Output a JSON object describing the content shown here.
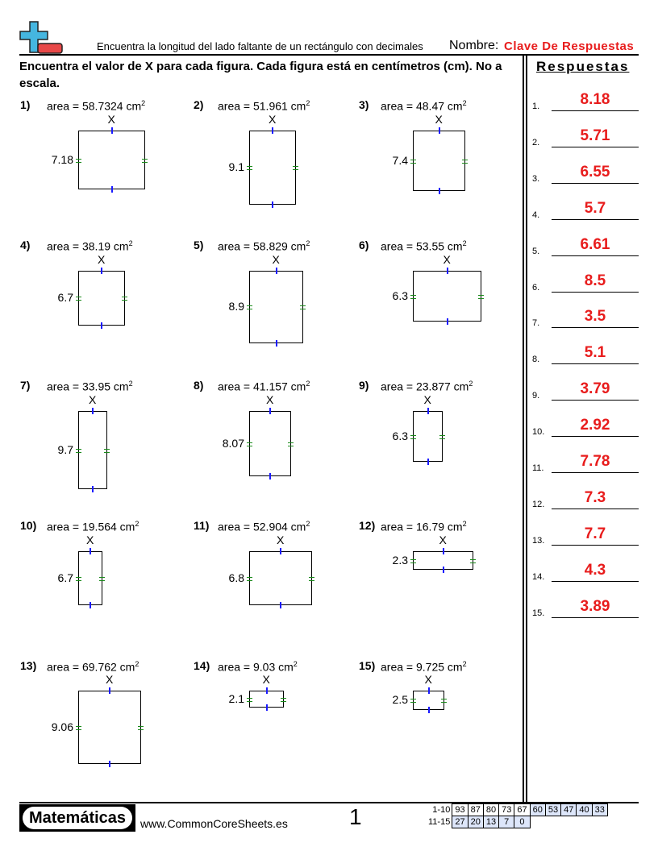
{
  "header": {
    "subtitle": "Encuentra la longitud del lado faltante de un rectángulo con decimales",
    "name_label": "Nombre:",
    "name_value": "Clave De Respuestas"
  },
  "instructions": "Encuentra el valor de X para cada figura. Cada figura está en centímetros (cm). No a escala.",
  "answers_title": "Respuestas",
  "problems": [
    {
      "num": "1)",
      "area": "area = 58.7324 cm",
      "side": "7.18",
      "x": "X"
    },
    {
      "num": "2)",
      "area": "area = 51.961 cm",
      "side": "9.1",
      "x": "X"
    },
    {
      "num": "3)",
      "area": "area = 48.47 cm",
      "side": "7.4",
      "x": "X"
    },
    {
      "num": "4)",
      "area": "area = 38.19 cm",
      "side": "6.7",
      "x": "X"
    },
    {
      "num": "5)",
      "area": "area = 58.829 cm",
      "side": "8.9",
      "x": "X"
    },
    {
      "num": "6)",
      "area": "area = 53.55 cm",
      "side": "6.3",
      "x": "X"
    },
    {
      "num": "7)",
      "area": "area = 33.95 cm",
      "side": "9.7",
      "x": "X"
    },
    {
      "num": "8)",
      "area": "area = 41.157 cm",
      "side": "8.07",
      "x": "X"
    },
    {
      "num": "9)",
      "area": "area = 23.877 cm",
      "side": "6.3",
      "x": "X"
    },
    {
      "num": "10)",
      "area": "area = 19.564 cm",
      "side": "6.7",
      "x": "X"
    },
    {
      "num": "11)",
      "area": "area = 52.904 cm",
      "side": "6.8",
      "x": "X"
    },
    {
      "num": "12)",
      "area": "area = 16.79 cm",
      "side": "2.3",
      "x": "X"
    },
    {
      "num": "13)",
      "area": "area = 69.762 cm",
      "side": "9.06",
      "x": "X"
    },
    {
      "num": "14)",
      "area": "area = 9.03 cm",
      "side": "2.1",
      "x": "X"
    },
    {
      "num": "15)",
      "area": "area = 9.725 cm",
      "side": "2.5",
      "x": "X"
    }
  ],
  "area_exponent": "2",
  "answers": [
    {
      "num": "1.",
      "val": "8.18"
    },
    {
      "num": "2.",
      "val": "5.71"
    },
    {
      "num": "3.",
      "val": "6.55"
    },
    {
      "num": "4.",
      "val": "5.7"
    },
    {
      "num": "5.",
      "val": "6.61"
    },
    {
      "num": "6.",
      "val": "8.5"
    },
    {
      "num": "7.",
      "val": "3.5"
    },
    {
      "num": "8.",
      "val": "5.1"
    },
    {
      "num": "9.",
      "val": "3.79"
    },
    {
      "num": "10.",
      "val": "2.92"
    },
    {
      "num": "11.",
      "val": "7.78"
    },
    {
      "num": "12.",
      "val": "7.3"
    },
    {
      "num": "13.",
      "val": "7.7"
    },
    {
      "num": "14.",
      "val": "4.3"
    },
    {
      "num": "15.",
      "val": "3.89"
    }
  ],
  "footer": {
    "brand": "Matemáticas",
    "url": "www.CommonCoreSheets.es",
    "page": "1",
    "score_rows": [
      {
        "label": "1-10",
        "scores": [
          "93",
          "87",
          "80",
          "73",
          "67",
          "60",
          "53",
          "47",
          "40",
          "33"
        ]
      },
      {
        "label": "11-15",
        "scores": [
          "27",
          "20",
          "13",
          "7",
          "0"
        ]
      }
    ]
  },
  "colors": {
    "answer": "#e81c1c",
    "x_tick": "#1a1aff",
    "side_tick": "#1a8a1a",
    "score_shade": "#dde6fa"
  }
}
